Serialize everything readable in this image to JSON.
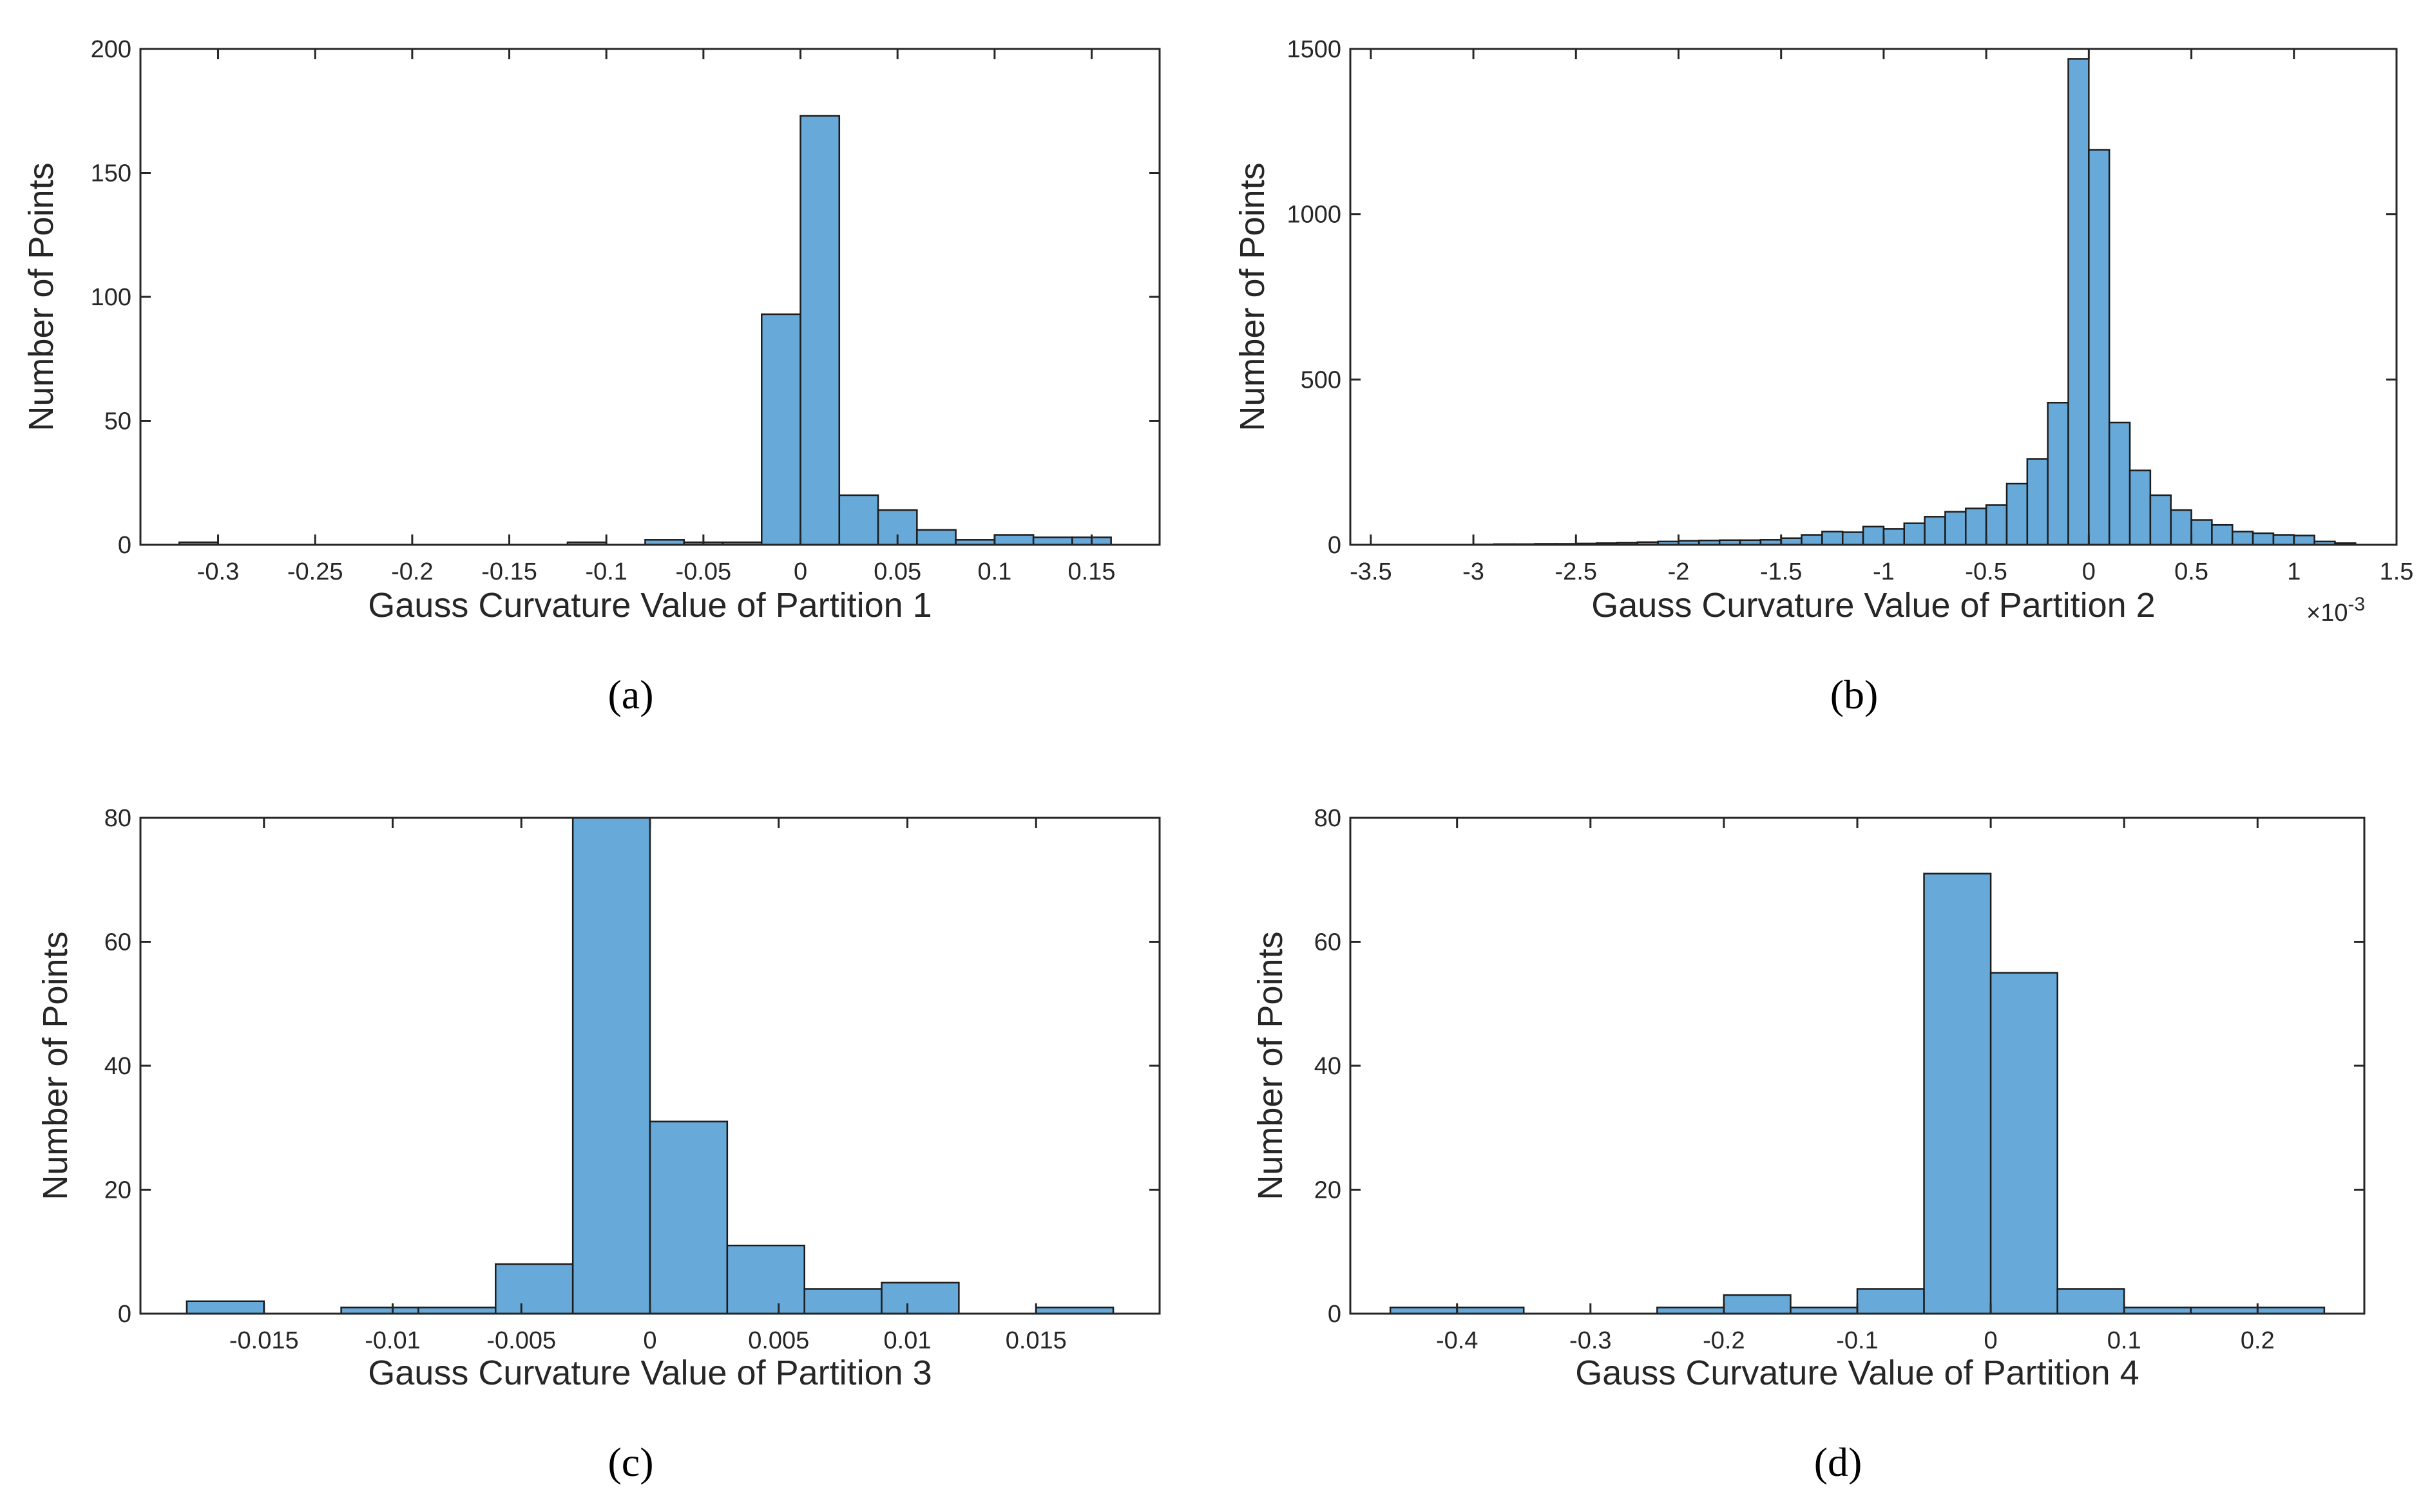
{
  "colors": {
    "bar": "#67a9d8",
    "edge": "#1c1c1c",
    "axis": "#262626"
  },
  "chart_data": [
    {
      "panel": "(a)",
      "type": "bar",
      "xlabel": "Gauss Curvature Value of Partition 1",
      "ylabel": "Number of Points",
      "xlim": [
        -0.34,
        0.185
      ],
      "ylim": [
        0,
        200
      ],
      "xticks": [
        -0.3,
        -0.25,
        -0.2,
        -0.15,
        -0.1,
        -0.05,
        0,
        0.05,
        0.1,
        0.15
      ],
      "xtick_labels": [
        "-0.3",
        "-0.25",
        "-0.2",
        "-0.15",
        "-0.1",
        "-0.05",
        "0",
        "0.05",
        "0.1",
        "0.15"
      ],
      "yticks": [
        0,
        50,
        100,
        150,
        200
      ],
      "ytick_labels": [
        "0",
        "50",
        "100",
        "150",
        "200"
      ],
      "bin_width": 0.02,
      "bin_starts": [
        -0.32,
        -0.12,
        -0.08,
        -0.06,
        -0.04,
        -0.02,
        0,
        0.02,
        0.04,
        0.06,
        0.08,
        0.1,
        0.12,
        0.14
      ],
      "counts": [
        1,
        1,
        2,
        1,
        1,
        93,
        173,
        20,
        14,
        6,
        2,
        4,
        3,
        3
      ]
    },
    {
      "panel": "(b)",
      "type": "bar",
      "xlabel": "Gauss Curvature Value of Partition 2",
      "xlabel_exponent": "×10-3",
      "ylabel": "Number of Points",
      "xlim": [
        -3.6,
        1.5
      ],
      "ylim": [
        0,
        1500
      ],
      "xticks": [
        -3.5,
        -3,
        -2.5,
        -2,
        -1.5,
        -1,
        -0.5,
        0,
        0.5,
        1,
        1.5
      ],
      "xtick_labels": [
        "-3.5",
        "-3",
        "-2.5",
        "-2",
        "-1.5",
        "-1",
        "-0.5",
        "0",
        "0.5",
        "1",
        "1.5"
      ],
      "yticks": [
        0,
        500,
        1000,
        1500
      ],
      "ytick_labels": [
        "0",
        "500",
        "1000",
        "1500"
      ],
      "bin_width": 0.1,
      "bin_starts": [
        -3.0,
        -2.9,
        -2.8,
        -2.7,
        -2.6,
        -2.5,
        -2.4,
        -2.3,
        -2.2,
        -2.1,
        -2.0,
        -1.9,
        -1.8,
        -1.7,
        -1.6,
        -1.5,
        -1.4,
        -1.3,
        -1.2,
        -1.1,
        -1.0,
        -0.9,
        -0.8,
        -0.7,
        -0.6,
        -0.5,
        -0.4,
        -0.3,
        -0.2,
        -0.1,
        0.0,
        0.1,
        0.2,
        0.3,
        0.4,
        0.5,
        0.6,
        0.7,
        0.8,
        0.9,
        1.0,
        1.1,
        1.2
      ],
      "counts": [
        1,
        2,
        2,
        3,
        3,
        4,
        5,
        6,
        8,
        10,
        12,
        13,
        14,
        14,
        15,
        20,
        30,
        40,
        38,
        55,
        48,
        65,
        85,
        100,
        110,
        120,
        185,
        260,
        430,
        1470,
        1195,
        370,
        225,
        150,
        105,
        75,
        60,
        40,
        35,
        30,
        28,
        10,
        5
      ]
    },
    {
      "panel": "(c)",
      "type": "bar",
      "xlabel": "Gauss Curvature Value of Partition 3",
      "ylabel": "Number of Points",
      "xlim": [
        -0.0198,
        0.0198
      ],
      "ylim": [
        0,
        80
      ],
      "xticks": [
        -0.015,
        -0.01,
        -0.005,
        0,
        0.005,
        0.01,
        0.015
      ],
      "xtick_labels": [
        "-0.015",
        "-0.01",
        "-0.005",
        "0",
        "0.005",
        "0.01",
        "0.015"
      ],
      "yticks": [
        0,
        20,
        40,
        60,
        80
      ],
      "ytick_labels": [
        "0",
        "20",
        "40",
        "60",
        "80"
      ],
      "bin_width": 0.003,
      "bin_starts": [
        -0.018,
        -0.012,
        -0.009,
        -0.006,
        -0.003,
        0,
        0.003,
        0.006,
        0.009,
        0.015
      ],
      "counts": [
        2,
        1,
        1,
        8,
        80,
        31,
        11,
        4,
        5,
        1
      ]
    },
    {
      "panel": "(d)",
      "type": "bar",
      "xlabel": "Gauss Curvature Value of Partition 4",
      "ylabel": "Number of Points",
      "xlim": [
        -0.48,
        0.28
      ],
      "ylim": [
        0,
        80
      ],
      "xticks": [
        -0.4,
        -0.3,
        -0.2,
        -0.1,
        0,
        0.1,
        0.2
      ],
      "xtick_labels": [
        "-0.4",
        "-0.3",
        "-0.2",
        "-0.1",
        "0",
        "0.1",
        "0.2"
      ],
      "yticks": [
        0,
        20,
        40,
        60,
        80
      ],
      "ytick_labels": [
        "0",
        "20",
        "40",
        "60",
        "80"
      ],
      "bin_width": 0.05,
      "bin_starts": [
        -0.45,
        -0.4,
        -0.25,
        -0.2,
        -0.15,
        -0.1,
        -0.05,
        0.0,
        0.05,
        0.1,
        0.15,
        0.2
      ],
      "counts": [
        1,
        1,
        1,
        3,
        1,
        4,
        71,
        55,
        4,
        1,
        1,
        1
      ]
    }
  ]
}
